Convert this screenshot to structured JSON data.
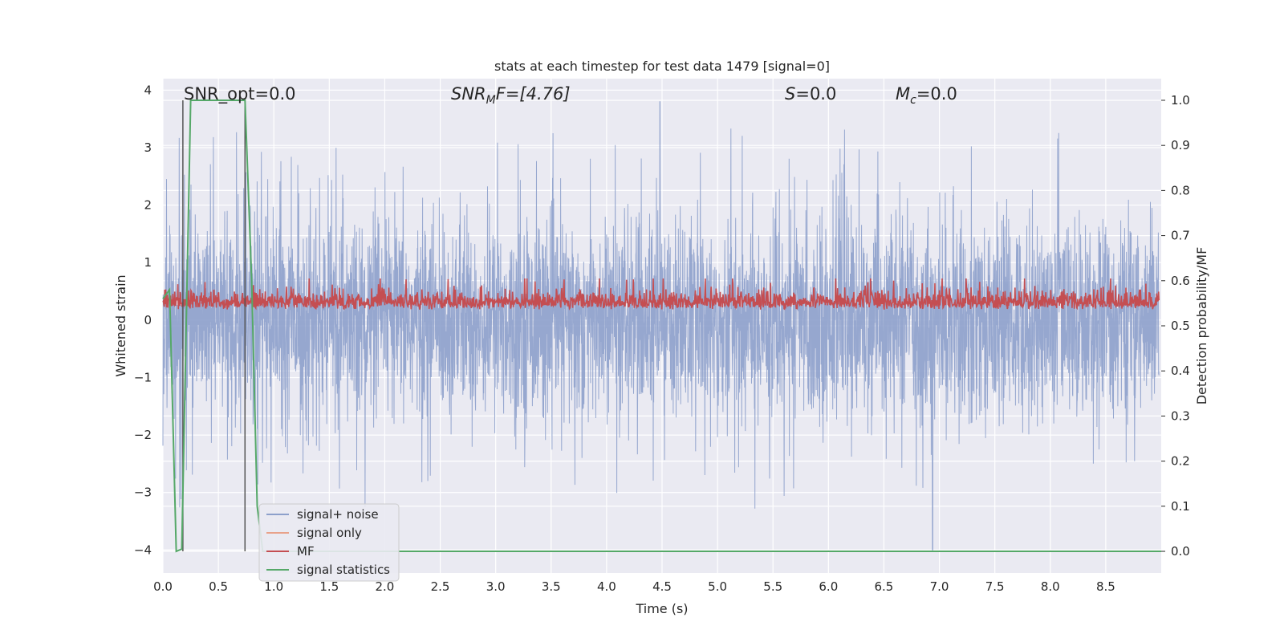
{
  "chart_data": {
    "type": "line",
    "title": "stats at each timestep for test data 1479 [signal=0]",
    "xlabel": "Time (s)",
    "ylabel_left": "Whitened strain",
    "ylabel_right": "Detection probability/MF",
    "xlim": [
      0.0,
      9.0
    ],
    "ylim_left": [
      -4.4,
      4.2
    ],
    "ylim_right": [
      -0.048,
      1.048
    ],
    "x_ticks": [
      "0.0",
      "0.5",
      "1.0",
      "1.5",
      "2.0",
      "2.5",
      "3.0",
      "3.5",
      "4.0",
      "4.5",
      "5.0",
      "5.5",
      "6.0",
      "6.5",
      "7.0",
      "7.5",
      "8.0",
      "8.5"
    ],
    "y_left_ticks": [
      "4",
      "3",
      "2",
      "1",
      "0",
      "−1",
      "−2",
      "−3",
      "−4"
    ],
    "y_right_ticks": [
      "1.0",
      "0.9",
      "0.8",
      "0.7",
      "0.6",
      "0.5",
      "0.4",
      "0.3",
      "0.2",
      "0.1",
      "0.0"
    ],
    "grid": true,
    "legend_placement": "lower-left",
    "annotations": {
      "snr_opt": "SNR_opt=0.0",
      "snr_mf_base": "SNR",
      "snr_mf_sub": "M",
      "snr_mf_rest": "F=[4.76]",
      "s_base": "S",
      "s_rest": "=0.0",
      "mc_base": "M",
      "mc_sub": "c",
      "mc_rest": "=0.0"
    },
    "series": [
      {
        "name": "signal+ noise",
        "color": "#8da0cb",
        "note_values": "random noise, amplitude ~±1.5, spikes to ±3.8, range -4.0 to 3.8"
      },
      {
        "name": "signal only",
        "color": "#e8a28a"
      },
      {
        "name": "MF",
        "color": "#c44e52",
        "range": [
          0.0,
          1.0
        ]
      },
      {
        "name": "signal statistics",
        "color": "#55a868",
        "x": [
          0.0,
          0.06,
          0.12,
          0.17,
          0.25,
          0.3,
          0.5,
          0.6,
          0.74,
          0.8,
          0.85,
          0.9,
          9.0
        ],
        "y": [
          0.56,
          0.58,
          0.0,
          0.005,
          1.0,
          1.0,
          1.0,
          1.0,
          1.0,
          0.6,
          0.1,
          0.0,
          0.0
        ]
      }
    ],
    "vlines": [
      0.18,
      0.74
    ],
    "legend": [
      "signal+ noise",
      "signal only",
      "MF",
      "signal statistics"
    ]
  }
}
